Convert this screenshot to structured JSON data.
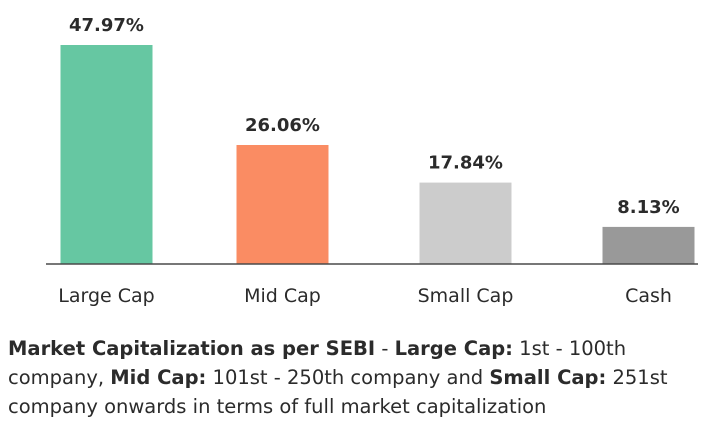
{
  "chart_data": {
    "type": "bar",
    "categories": [
      "Large Cap",
      "Mid Cap",
      "Small Cap",
      "Cash"
    ],
    "values": [
      47.97,
      26.06,
      17.84,
      8.13
    ],
    "value_labels": [
      "47.97%",
      "26.06%",
      "17.84%",
      "8.13%"
    ],
    "colors": [
      "#66c7a2",
      "#fa8c63",
      "#cccccc",
      "#999999"
    ],
    "ylim": [
      0,
      47.97
    ],
    "grid": false,
    "legend": "none"
  },
  "note": {
    "term1": "Market Capitalization as per SEBI",
    "sep1": " - ",
    "term2": "Large Cap:",
    "text2": " 1st - 100th company, ",
    "term3": "Mid Cap:",
    "text3": " 101st - 250th company and ",
    "term4": "Small Cap:",
    "text4": " 251st company onwards in terms of full market capitalization"
  }
}
